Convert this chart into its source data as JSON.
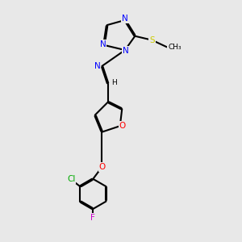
{
  "background_color": "#e8e8e8",
  "bond_color": "#000000",
  "bond_lw": 1.5,
  "atom_colors": {
    "N": "#0000ff",
    "O": "#ff0000",
    "S": "#cccc00",
    "Cl": "#00aa00",
    "F": "#cc00cc",
    "C": "#000000",
    "H": "#000000"
  },
  "font_size": 7.5,
  "label_font_size": 7.5
}
